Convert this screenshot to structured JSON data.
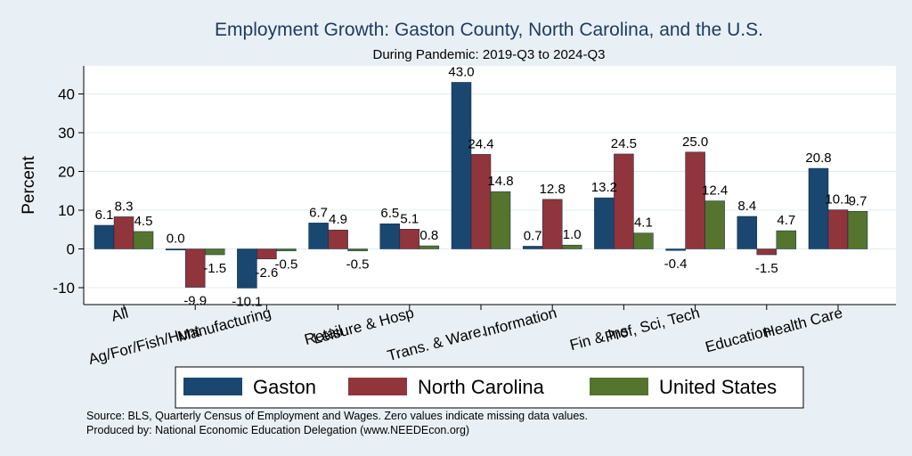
{
  "chart_data": {
    "type": "bar",
    "title": "Employment Growth: Gaston County, North Carolina, and the U.S.",
    "subtitle": "During Pandemic: 2019-Q3 to 2024-Q3",
    "ylabel": "Percent",
    "xlabel": "",
    "ylim": [
      -14,
      47
    ],
    "yticks": [
      -10,
      0,
      10,
      20,
      30,
      40
    ],
    "ytick_labels": [
      "-10",
      "0",
      "10",
      "20",
      "30",
      "40"
    ],
    "grid": true,
    "legend_position": "bottom",
    "categories": [
      "All",
      "Ag/For/Fish/Hunt",
      "Manufacturing",
      "Retail",
      "Leisure & Hosp",
      "Trans. & Ware.",
      "Information",
      "Fin & Ins",
      "Prof, Sci, Tech",
      "Education",
      "Health Care"
    ],
    "series": [
      {
        "name": "Gaston",
        "color": "#1a476f",
        "values": [
          6.1,
          0.0,
          -10.1,
          6.7,
          6.5,
          43.0,
          0.7,
          13.2,
          -0.4,
          8.4,
          20.8
        ],
        "labels": [
          "6.1",
          "0.0",
          "-10.1",
          "6.7",
          "6.5",
          "43.0",
          "0.7",
          "13.2",
          "-0.4",
          "8.4",
          "20.8"
        ]
      },
      {
        "name": "North Carolina",
        "color": "#90353b",
        "values": [
          8.3,
          -9.9,
          -2.6,
          4.9,
          5.1,
          24.4,
          12.8,
          24.5,
          25.0,
          -1.5,
          10.1
        ],
        "labels": [
          "8.3",
          "-9.9",
          "-2.6",
          "4.9",
          "5.1",
          "24.4",
          "12.8",
          "24.5",
          "25.0",
          "-1.5",
          "10.1"
        ]
      },
      {
        "name": "United States",
        "color": "#55752f",
        "values": [
          4.5,
          -1.5,
          -0.5,
          -0.5,
          0.8,
          14.8,
          1.0,
          4.1,
          12.4,
          4.7,
          9.7
        ],
        "labels": [
          "4.5",
          "-1.5",
          "-0.5",
          "-0.5",
          "0.8",
          "14.8",
          "1.0",
          "4.1",
          "12.4",
          "4.7",
          "9.7"
        ]
      }
    ],
    "notes": [
      "Source: BLS, Quarterly Census of Employment and Wages. Zero values indicate missing data values.",
      "Produced by: National Economic Education Delegation (www.NEEDEcon.org)"
    ]
  }
}
